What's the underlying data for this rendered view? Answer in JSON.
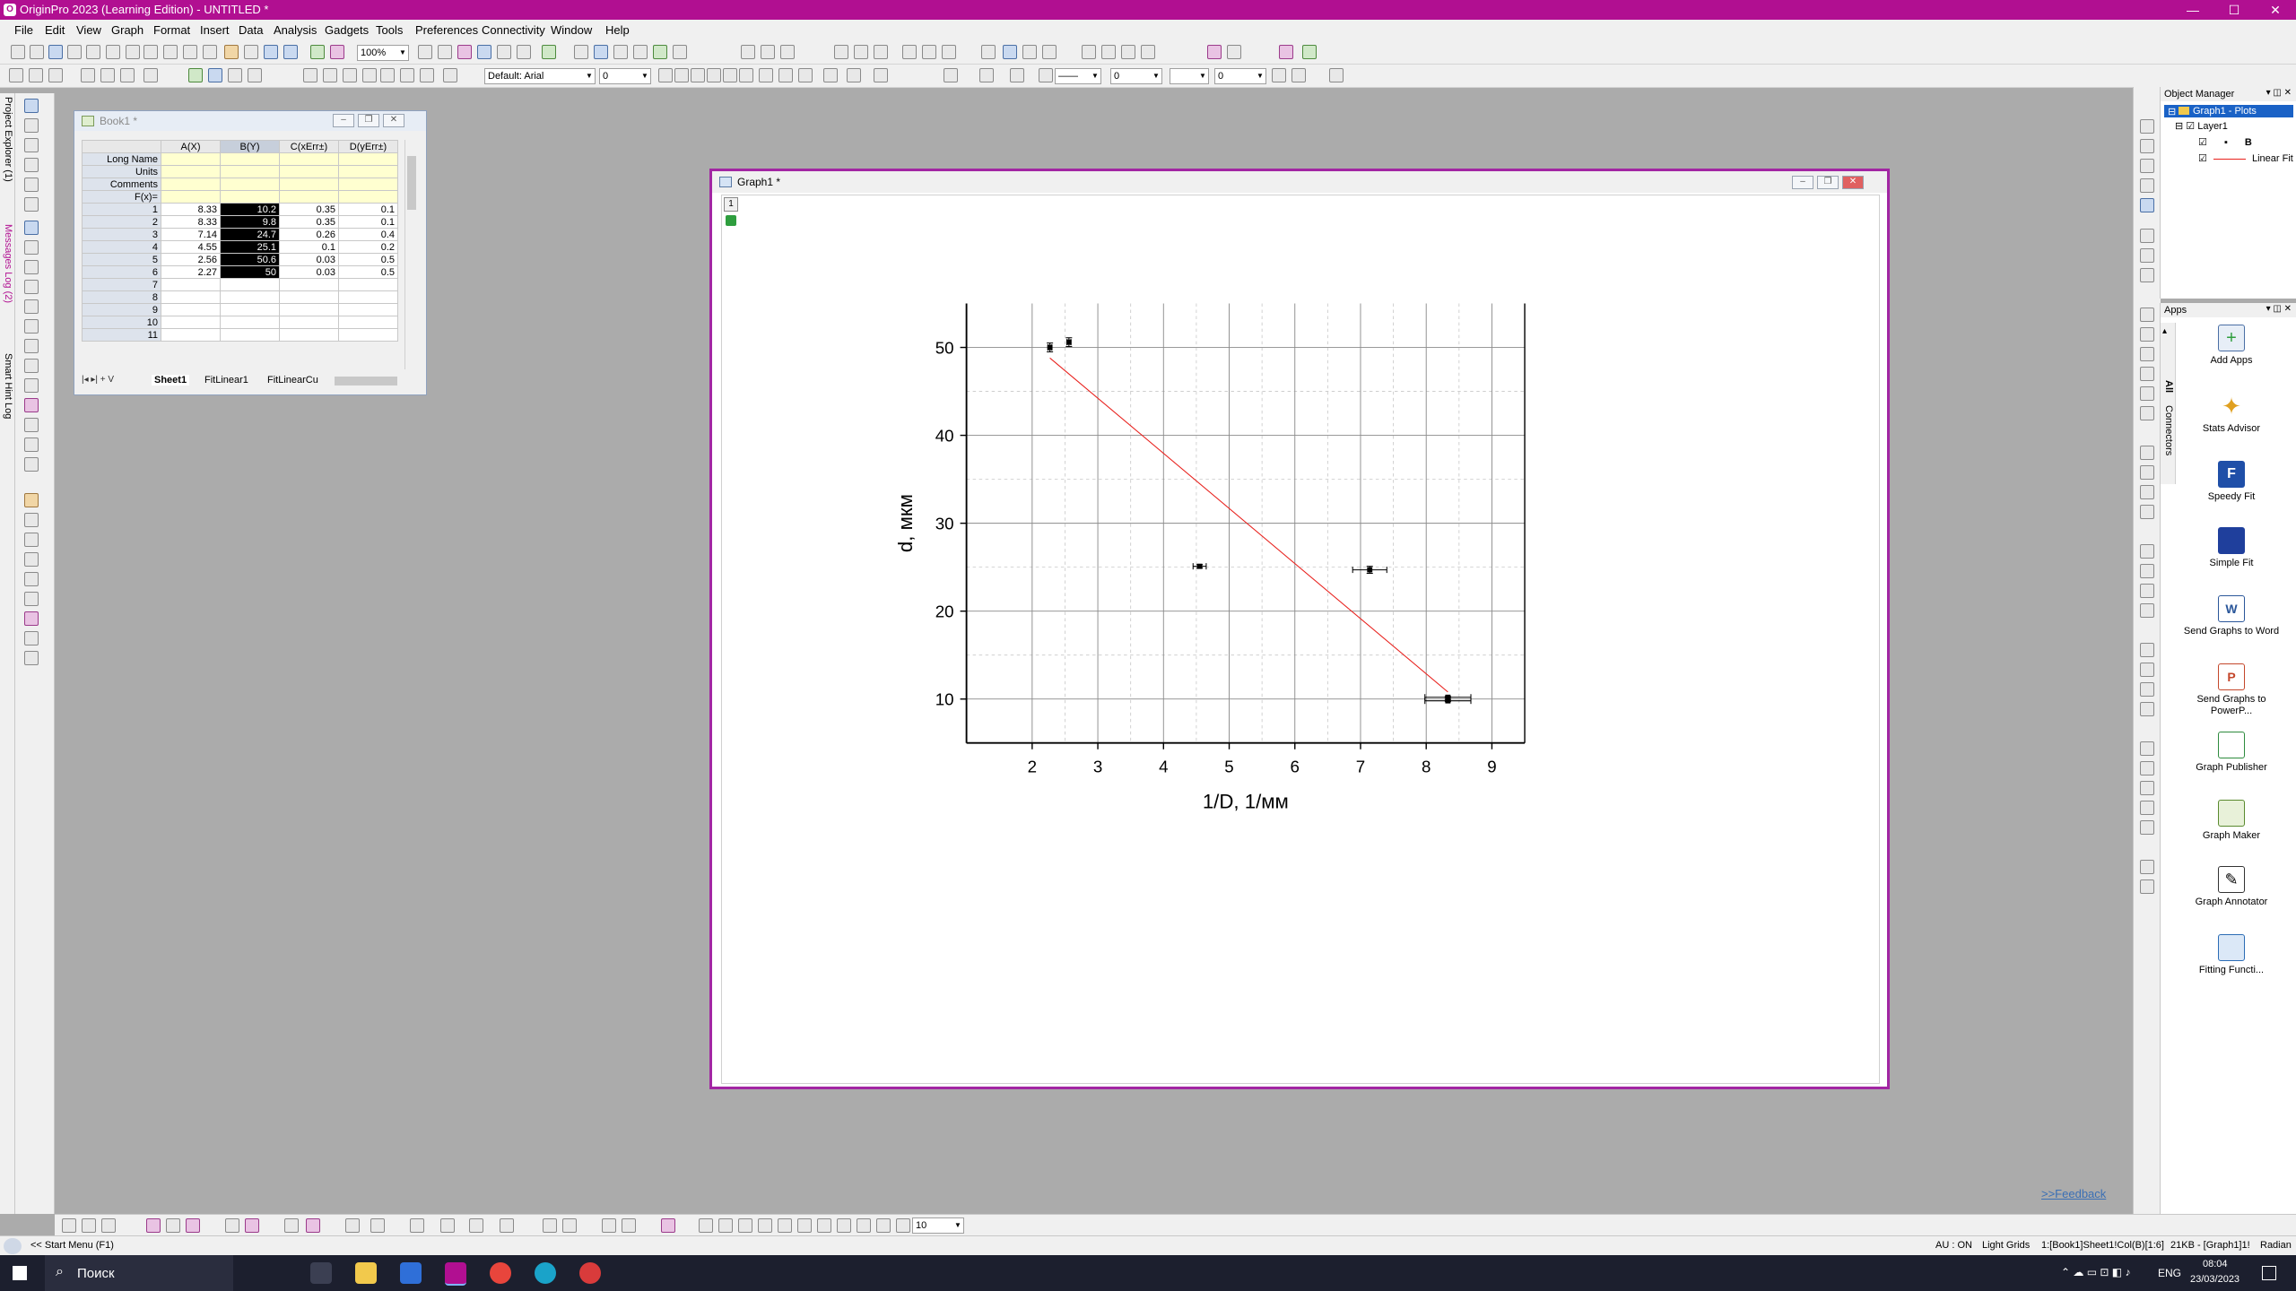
{
  "window": {
    "title": "OriginPro 2023 (Learning Edition) - UNTITLED *",
    "min": "—",
    "max": "☐",
    "close": "✕"
  },
  "menu": [
    "File",
    "Edit",
    "View",
    "Graph",
    "Format",
    "Insert",
    "Data",
    "Analysis",
    "Gadgets",
    "Tools",
    "Preferences",
    "Connectivity",
    "Window",
    "Help"
  ],
  "toolbar": {
    "zoom": "100%",
    "font": "Default: Arial",
    "font_size": "0",
    "line_width": "0",
    "pattern_size": "0",
    "bottom_size": "10"
  },
  "left_tabs": {
    "project_explorer": "Project Explorer (1)",
    "messages_log": "Messages Log (2)",
    "smart_hint": "Smart Hint Log"
  },
  "book": {
    "title": "Book1 *",
    "columns": [
      "A(X)",
      "B(Y)",
      "C(xErr±)",
      "D(yErr±)"
    ],
    "row_labels": [
      "Long Name",
      "Units",
      "Comments",
      "F(x)="
    ],
    "rows": [
      [
        "1",
        "8.33",
        "10.2",
        "0.35",
        "0.1"
      ],
      [
        "2",
        "8.33",
        "9.8",
        "0.35",
        "0.1"
      ],
      [
        "3",
        "7.14",
        "24.7",
        "0.26",
        "0.4"
      ],
      [
        "4",
        "4.55",
        "25.1",
        "0.1",
        "0.2"
      ],
      [
        "5",
        "2.56",
        "50.6",
        "0.03",
        "0.5"
      ],
      [
        "6",
        "2.27",
        "50",
        "0.03",
        "0.5"
      ],
      [
        "7",
        "",
        "",
        "",
        ""
      ],
      [
        "8",
        "",
        "",
        "",
        ""
      ],
      [
        "9",
        "",
        "",
        "",
        ""
      ],
      [
        "10",
        "",
        "",
        "",
        ""
      ],
      [
        "11",
        "",
        "",
        "",
        ""
      ]
    ],
    "sheet_tabs": [
      "Sheet1",
      "FitLinear1",
      "FitLinearCu"
    ]
  },
  "graph": {
    "title": "Graph1 *",
    "layer_tag": "1"
  },
  "chart_data": {
    "type": "scatter",
    "xlabel": "1/D, 1/мм",
    "ylabel": "d, мкм",
    "xlim": [
      1.0,
      9.5
    ],
    "ylim": [
      5,
      55
    ],
    "xticks": [
      2,
      3,
      4,
      5,
      6,
      7,
      8,
      9
    ],
    "yticks": [
      10,
      20,
      30,
      40,
      50
    ],
    "grid": true,
    "points": [
      {
        "x": 8.33,
        "y": 10.2,
        "xerr": 0.35,
        "yerr": 0.1
      },
      {
        "x": 8.33,
        "y": 9.8,
        "xerr": 0.35,
        "yerr": 0.1
      },
      {
        "x": 7.14,
        "y": 24.7,
        "xerr": 0.26,
        "yerr": 0.4
      },
      {
        "x": 4.55,
        "y": 25.1,
        "xerr": 0.1,
        "yerr": 0.2
      },
      {
        "x": 2.56,
        "y": 50.6,
        "xerr": 0.03,
        "yerr": 0.5
      },
      {
        "x": 2.27,
        "y": 50,
        "xerr": 0.03,
        "yerr": 0.5
      }
    ],
    "fit_line": {
      "x": [
        2.27,
        8.33
      ],
      "y": [
        48.8,
        10.8
      ],
      "color": "#e8201c"
    }
  },
  "object_manager": {
    "title": "Object Manager",
    "graph": "Graph1 - Plots",
    "layer": "Layer1",
    "plot_b": "B",
    "plot_fit": "Linear Fit c"
  },
  "apps": {
    "title": "Apps",
    "side_tabs": [
      "All",
      "Connectors"
    ],
    "items": [
      "Add Apps",
      "Stats Advisor",
      "Speedy Fit",
      "Simple Fit",
      "Send Graphs to Word",
      "Send Graphs to PowerP...",
      "Graph Publisher",
      "Graph Maker",
      "Graph Annotator",
      "Fitting Functi..."
    ]
  },
  "feedback": ">>Feedback",
  "status": {
    "start_menu": "<< Start Menu (F1)",
    "au": "AU : ON",
    "theme": "Light Grids",
    "selection": "1:[Book1]Sheet1!Col(B)[1:6]",
    "memory": "21KB - [Graph1]1!",
    "angle": "Radian"
  },
  "taskbar": {
    "search": "Поиск",
    "lang": "ENG",
    "time": "08:04",
    "date": "23/03/2023"
  }
}
